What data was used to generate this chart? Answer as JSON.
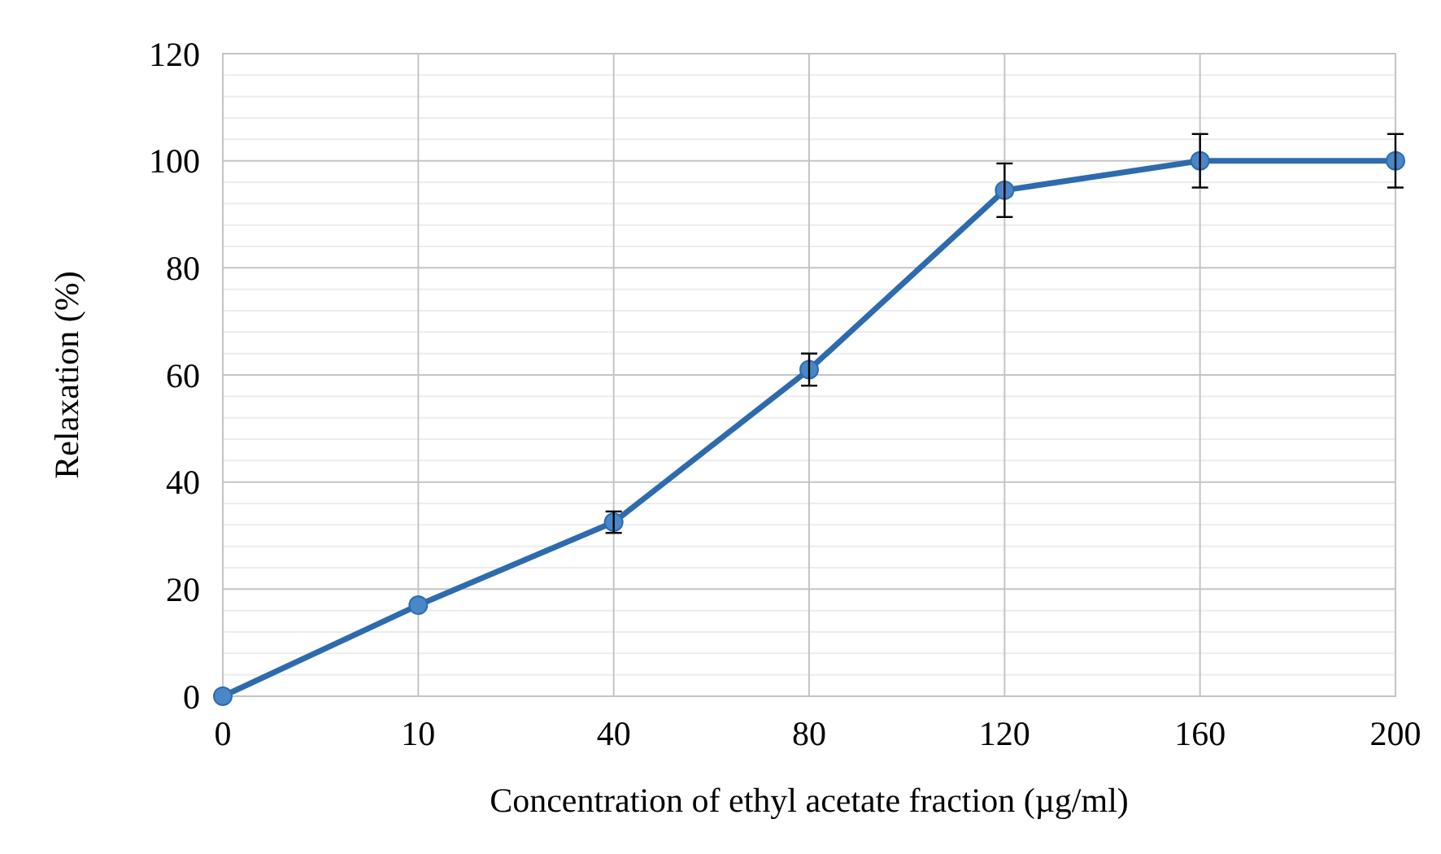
{
  "chart_data": {
    "type": "line",
    "xlabel": "Concentration of ethyl acetate fraction (µg/ml)",
    "ylabel": "Relaxation (%)",
    "categories": [
      "0",
      "10",
      "40",
      "80",
      "120",
      "160",
      "200"
    ],
    "series": [
      {
        "color": "#2e6bad",
        "values": [
          0,
          17,
          32.5,
          61,
          94.5,
          100,
          100
        ],
        "errors": [
          null,
          null,
          2,
          3,
          5,
          5,
          5
        ]
      }
    ],
    "ylim": [
      0,
      120
    ],
    "yticks": [
      0,
      {
        "value": 4,
        "label": null
      },
      {
        "value": 8,
        "label": null
      },
      {
        "value": 12,
        "label": null
      },
      {
        "value": 16,
        "label": null
      },
      20,
      {
        "value": 24,
        "label": null
      },
      {
        "value": 28,
        "label": null
      },
      {
        "value": 32,
        "label": null
      },
      {
        "value": 36,
        "label": null
      },
      40,
      {
        "value": 44,
        "label": null
      },
      {
        "value": 48,
        "label": null
      },
      {
        "value": 52,
        "label": null
      },
      {
        "value": 56,
        "label": null
      },
      60,
      {
        "value": 64,
        "label": null
      },
      {
        "value": 68,
        "label": null
      },
      {
        "value": 72,
        "label": null
      },
      {
        "value": 76,
        "label": null
      },
      80,
      {
        "value": 84,
        "label": null
      },
      {
        "value": 88,
        "label": null
      },
      {
        "value": 92,
        "label": null
      },
      {
        "value": 96,
        "label": null
      },
      100,
      {
        "value": 104,
        "label": null
      },
      {
        "value": 108,
        "label": null
      },
      {
        "value": 112,
        "label": null
      },
      {
        "value": 116,
        "label": null
      },
      120
    ],
    "grid": true,
    "marker": "circle",
    "line_style": "solid"
  }
}
